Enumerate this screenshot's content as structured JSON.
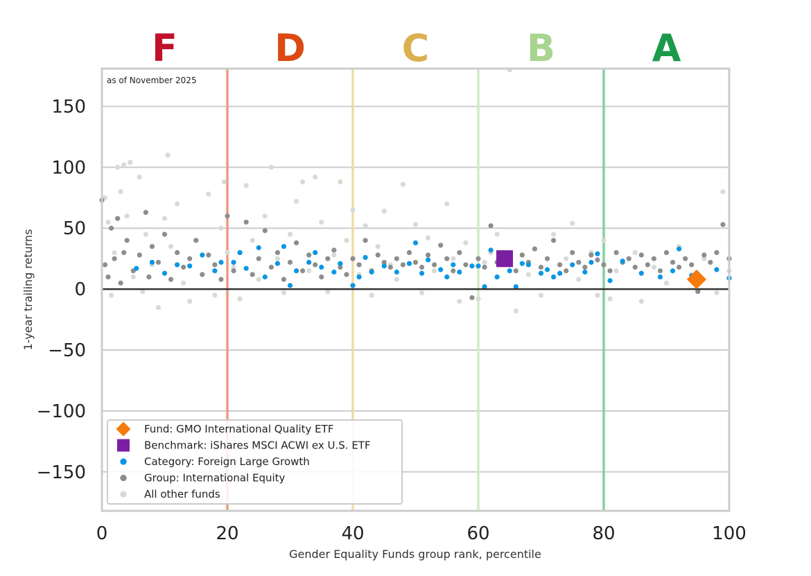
{
  "chart_data": {
    "type": "scatter",
    "annotation": "as of November 2025",
    "xlabel": "Gender Equality Funds group rank, percentile",
    "ylabel": "1-year trailing returns",
    "xlim": [
      0,
      100
    ],
    "ylim": [
      -182,
      181
    ],
    "xticks": [
      0,
      20,
      40,
      60,
      80,
      100
    ],
    "yticks": [
      150,
      100,
      50,
      0,
      -50,
      -100,
      -150
    ],
    "ytick_labels": [
      "150",
      "100",
      "50",
      "0",
      "−50",
      "−100",
      "−150"
    ],
    "grid": true,
    "legend_position": "bottom-left",
    "grades": [
      {
        "label": "F",
        "center": 10,
        "color": "#c0102a"
      },
      {
        "label": "D",
        "center": 30,
        "color": "#dc4a12"
      },
      {
        "label": "C",
        "center": 50,
        "color": "#dcb050"
      },
      {
        "label": "B",
        "center": 70,
        "color": "#a8d490"
      },
      {
        "label": "A",
        "center": 90,
        "color": "#1a9a4a"
      }
    ],
    "grade_boundaries": [
      {
        "x": 20,
        "color": "#ec9a80"
      },
      {
        "x": 40,
        "color": "#f2dba6"
      },
      {
        "x": 60,
        "color": "#d4eac6"
      },
      {
        "x": 80,
        "color": "#86cfa0"
      }
    ],
    "series": [
      {
        "name": "All other funds",
        "marker": "circle",
        "color": "#d7dbd5",
        "points": [
          [
            0.5,
            75
          ],
          [
            1,
            55
          ],
          [
            1.5,
            -5
          ],
          [
            2,
            30
          ],
          [
            2.5,
            100
          ],
          [
            3,
            80
          ],
          [
            3.5,
            102
          ],
          [
            4,
            60
          ],
          [
            4.5,
            104
          ],
          [
            5,
            10
          ],
          [
            6,
            92
          ],
          [
            6.5,
            -2
          ],
          [
            7,
            45
          ],
          [
            8,
            20
          ],
          [
            9,
            -15
          ],
          [
            10,
            58
          ],
          [
            10.5,
            110
          ],
          [
            11,
            35
          ],
          [
            12,
            70
          ],
          [
            13,
            5
          ],
          [
            14,
            -10
          ],
          [
            15,
            40
          ],
          [
            16,
            12
          ],
          [
            17,
            78
          ],
          [
            18,
            -5
          ],
          [
            19,
            50
          ],
          [
            19.5,
            88
          ],
          [
            20,
            30
          ],
          [
            21,
            18
          ],
          [
            22,
            -8
          ],
          [
            23,
            85
          ],
          [
            24,
            40
          ],
          [
            25,
            8
          ],
          [
            26,
            60
          ],
          [
            27,
            100
          ],
          [
            28,
            25
          ],
          [
            29,
            -3
          ],
          [
            30,
            45
          ],
          [
            31,
            72
          ],
          [
            32,
            88
          ],
          [
            33,
            15
          ],
          [
            34,
            92
          ],
          [
            35,
            55
          ],
          [
            36,
            -2
          ],
          [
            37,
            28
          ],
          [
            38,
            88
          ],
          [
            39,
            40
          ],
          [
            40,
            65
          ],
          [
            41,
            12
          ],
          [
            42,
            52
          ],
          [
            43,
            -5
          ],
          [
            44,
            35
          ],
          [
            45,
            64
          ],
          [
            46,
            20
          ],
          [
            47,
            8
          ],
          [
            48,
            86
          ],
          [
            49,
            30
          ],
          [
            50,
            53
          ],
          [
            51,
            -3
          ],
          [
            52,
            42
          ],
          [
            53,
            15
          ],
          [
            55,
            70
          ],
          [
            56,
            25
          ],
          [
            57,
            -10
          ],
          [
            58,
            38
          ],
          [
            60,
            -8
          ],
          [
            61,
            22
          ],
          [
            62,
            30
          ],
          [
            63,
            45
          ],
          [
            65,
            180
          ],
          [
            66,
            -18
          ],
          [
            67,
            28
          ],
          [
            68,
            12
          ],
          [
            70,
            -5
          ],
          [
            72,
            45
          ],
          [
            74,
            25
          ],
          [
            75,
            54
          ],
          [
            76,
            8
          ],
          [
            78,
            30
          ],
          [
            79,
            -5
          ],
          [
            80,
            40
          ],
          [
            81,
            -8
          ],
          [
            82,
            15
          ],
          [
            83,
            22
          ],
          [
            85,
            30
          ],
          [
            86,
            -10
          ],
          [
            88,
            18
          ],
          [
            90,
            5
          ],
          [
            92,
            35
          ],
          [
            94,
            12
          ],
          [
            96,
            25
          ],
          [
            98,
            -3
          ],
          [
            99,
            80
          ],
          [
            100,
            15
          ]
        ]
      },
      {
        "name": "Group: International Equity",
        "marker": "circle",
        "color": "#8d8d8b",
        "points": [
          [
            0,
            73
          ],
          [
            0.5,
            20
          ],
          [
            1,
            10
          ],
          [
            1.5,
            50
          ],
          [
            2,
            25
          ],
          [
            2.5,
            58
          ],
          [
            3,
            5
          ],
          [
            3.5,
            30
          ],
          [
            4,
            40
          ],
          [
            5,
            15
          ],
          [
            6,
            28
          ],
          [
            7,
            63
          ],
          [
            7.5,
            10
          ],
          [
            8,
            35
          ],
          [
            9,
            22
          ],
          [
            10,
            45
          ],
          [
            11,
            8
          ],
          [
            12,
            30
          ],
          [
            13,
            18
          ],
          [
            14,
            25
          ],
          [
            15,
            40
          ],
          [
            16,
            12
          ],
          [
            17,
            28
          ],
          [
            18,
            20
          ],
          [
            19,
            8
          ],
          [
            20,
            60
          ],
          [
            21,
            15
          ],
          [
            22,
            30
          ],
          [
            23,
            55
          ],
          [
            24,
            12
          ],
          [
            25,
            25
          ],
          [
            26,
            48
          ],
          [
            27,
            18
          ],
          [
            28,
            30
          ],
          [
            29,
            8
          ],
          [
            30,
            22
          ],
          [
            31,
            38
          ],
          [
            32,
            15
          ],
          [
            33,
            28
          ],
          [
            34,
            20
          ],
          [
            35,
            10
          ],
          [
            36,
            25
          ],
          [
            37,
            32
          ],
          [
            38,
            18
          ],
          [
            39,
            12
          ],
          [
            40,
            25
          ],
          [
            41,
            20
          ],
          [
            42,
            40
          ],
          [
            43,
            15
          ],
          [
            44,
            28
          ],
          [
            45,
            22
          ],
          [
            46,
            18
          ],
          [
            47,
            25
          ],
          [
            48,
            20
          ],
          [
            49,
            30
          ],
          [
            50,
            22
          ],
          [
            51,
            18
          ],
          [
            52,
            28
          ],
          [
            53,
            20
          ],
          [
            54,
            36
          ],
          [
            55,
            25
          ],
          [
            56,
            15
          ],
          [
            57,
            30
          ],
          [
            58,
            20
          ],
          [
            59,
            -7
          ],
          [
            60,
            25
          ],
          [
            61,
            18
          ],
          [
            62,
            52
          ],
          [
            63,
            22
          ],
          [
            64,
            30
          ],
          [
            65,
            20
          ],
          [
            66,
            15
          ],
          [
            67,
            28
          ],
          [
            68,
            22
          ],
          [
            69,
            33
          ],
          [
            70,
            18
          ],
          [
            71,
            25
          ],
          [
            72,
            40
          ],
          [
            73,
            20
          ],
          [
            74,
            15
          ],
          [
            75,
            30
          ],
          [
            76,
            22
          ],
          [
            77,
            18
          ],
          [
            78,
            28
          ],
          [
            79,
            24
          ],
          [
            80,
            20
          ],
          [
            81,
            15
          ],
          [
            82,
            30
          ],
          [
            83,
            22
          ],
          [
            84,
            25
          ],
          [
            85,
            18
          ],
          [
            86,
            28
          ],
          [
            87,
            20
          ],
          [
            88,
            25
          ],
          [
            89,
            15
          ],
          [
            90,
            30
          ],
          [
            91,
            22
          ],
          [
            92,
            18
          ],
          [
            93,
            25
          ],
          [
            94,
            20
          ],
          [
            95,
            -2
          ],
          [
            96,
            28
          ],
          [
            97,
            22
          ],
          [
            98,
            30
          ],
          [
            99,
            53
          ],
          [
            100,
            25
          ]
        ]
      },
      {
        "name": "Category: Foreign Large Growth",
        "marker": "circle",
        "color": "#0a96e6",
        "points": [
          [
            5.5,
            17
          ],
          [
            8,
            22
          ],
          [
            10,
            13
          ],
          [
            12,
            20
          ],
          [
            14,
            19
          ],
          [
            16,
            28
          ],
          [
            18,
            15
          ],
          [
            19,
            22
          ],
          [
            21,
            22
          ],
          [
            22,
            30
          ],
          [
            23,
            17
          ],
          [
            25,
            34
          ],
          [
            26,
            10
          ],
          [
            28,
            21
          ],
          [
            29,
            35
          ],
          [
            30,
            3
          ],
          [
            31,
            15
          ],
          [
            33,
            22
          ],
          [
            34,
            30
          ],
          [
            35,
            18
          ],
          [
            37,
            14
          ],
          [
            38,
            21
          ],
          [
            40,
            3
          ],
          [
            41,
            10
          ],
          [
            42,
            26
          ],
          [
            43,
            14
          ],
          [
            45,
            19
          ],
          [
            47,
            14
          ],
          [
            49,
            21
          ],
          [
            50,
            38
          ],
          [
            51,
            13
          ],
          [
            52,
            24
          ],
          [
            54,
            16
          ],
          [
            55,
            10
          ],
          [
            56,
            20
          ],
          [
            57,
            14
          ],
          [
            59,
            19
          ],
          [
            60,
            19
          ],
          [
            61,
            2
          ],
          [
            62,
            32
          ],
          [
            63,
            10
          ],
          [
            65,
            15
          ],
          [
            66,
            2
          ],
          [
            67,
            21
          ],
          [
            68,
            20
          ],
          [
            70,
            13
          ],
          [
            71,
            16
          ],
          [
            72,
            10
          ],
          [
            73,
            13
          ],
          [
            75,
            20
          ],
          [
            77,
            14
          ],
          [
            78,
            22
          ],
          [
            79,
            29
          ],
          [
            81,
            7
          ],
          [
            83,
            23
          ],
          [
            86,
            13
          ],
          [
            89,
            10
          ],
          [
            91,
            15
          ],
          [
            92,
            33
          ],
          [
            94,
            11
          ],
          [
            98,
            16
          ],
          [
            100,
            9
          ]
        ]
      },
      {
        "name": "Fund: GMO International Quality ETF",
        "marker": "diamond",
        "color": "#f77a0c",
        "points": [
          [
            94.8,
            8
          ]
        ]
      },
      {
        "name": "Benchmark: iShares MSCI ACWI ex U.S. ETF",
        "marker": "square",
        "color": "#7b1fa2",
        "points": [
          [
            64.2,
            25
          ]
        ]
      }
    ],
    "legend_order": [
      3,
      4,
      2,
      1,
      0
    ]
  }
}
